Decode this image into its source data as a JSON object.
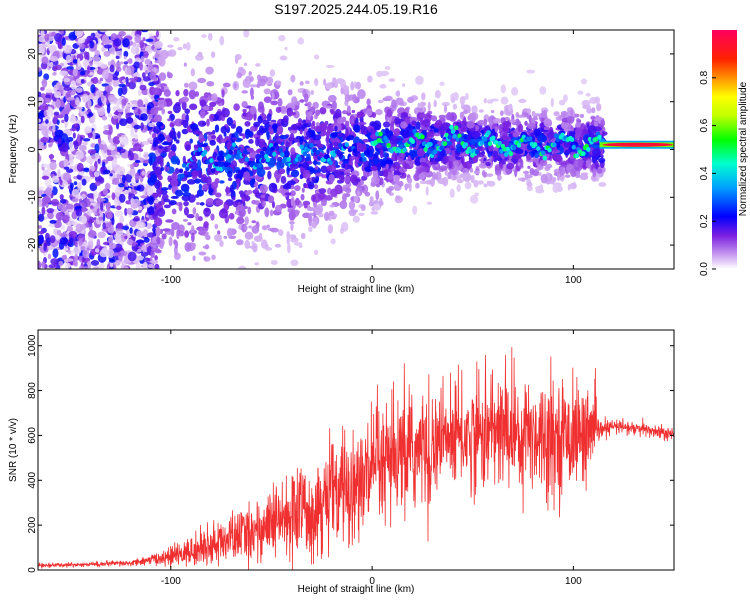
{
  "title": "S197.2025.244.05.19.R16",
  "chart_data": [
    {
      "type": "heatmap",
      "name": "spectrogram",
      "xlabel": "Height of straight line (km)",
      "ylabel": "Frequency (Hz)",
      "xlim": [
        -166,
        150
      ],
      "ylim": [
        -25,
        25
      ],
      "xticks": [
        -100,
        0,
        100
      ],
      "xtick_labels": [
        "-100",
        "0",
        "100"
      ],
      "yticks": [
        -20,
        -10,
        0,
        10,
        20
      ],
      "ytick_labels": [
        "-20",
        "-10",
        "0",
        "10",
        "20"
      ],
      "colorbar": {
        "label": "Normalized spectral amplitude",
        "range": [
          0,
          1
        ],
        "ticks": [
          0.0,
          0.2,
          0.4,
          0.6,
          0.8
        ],
        "tick_labels": [
          "0.0",
          "0.2",
          "0.4",
          "0.6",
          "0.8"
        ],
        "colormap": [
          "#ffffff",
          "#8a2be2",
          "#0000ff",
          "#00e5ff",
          "#00ff00",
          "#ffff00",
          "#ff8000",
          "#ff0000",
          "#ff0080"
        ]
      },
      "description_points": {
        "carrier_track_x": [
          -90,
          -70,
          -50,
          -30,
          -10,
          0,
          20,
          40,
          60,
          80,
          100,
          115,
          150
        ],
        "carrier_track_freq": [
          -3,
          -2,
          -1.5,
          -1,
          0,
          0.5,
          1,
          1.5,
          1,
          1,
          1,
          1,
          1
        ],
        "peak_amplitude_x_range": [
          115,
          150
        ]
      }
    },
    {
      "type": "line",
      "name": "snr",
      "xlabel": "Height of straight line (km)",
      "ylabel": "SNR (10 * v/v)",
      "xlim": [
        -166,
        150
      ],
      "ylim": [
        0,
        1070
      ],
      "xticks": [
        -100,
        0,
        100
      ],
      "xtick_labels": [
        "-100",
        "0",
        "100"
      ],
      "yticks": [
        0,
        200,
        400,
        600,
        800,
        1000
      ],
      "ytick_labels": [
        "0",
        "200",
        "400",
        "600",
        "800",
        "1000"
      ],
      "color": "#f03030",
      "series": [
        {
          "name": "SNR",
          "x": [
            -166,
            -140,
            -120,
            -110,
            -100,
            -90,
            -80,
            -70,
            -60,
            -50,
            -40,
            -30,
            -20,
            -10,
            0,
            10,
            20,
            30,
            40,
            50,
            60,
            70,
            80,
            90,
            100,
            110,
            113,
            120,
            130,
            140,
            150
          ],
          "mean": [
            20,
            25,
            30,
            45,
            60,
            80,
            110,
            140,
            170,
            200,
            240,
            280,
            330,
            380,
            420,
            470,
            520,
            560,
            590,
            600,
            610,
            620,
            615,
            600,
            600,
            610,
            620,
            640,
            630,
            620,
            600
          ],
          "spread": [
            8,
            10,
            12,
            20,
            40,
            60,
            80,
            100,
            120,
            140,
            170,
            200,
            230,
            240,
            250,
            250,
            240,
            230,
            210,
            220,
            230,
            250,
            240,
            230,
            200,
            180,
            40,
            30,
            30,
            30,
            30
          ]
        }
      ]
    }
  ]
}
